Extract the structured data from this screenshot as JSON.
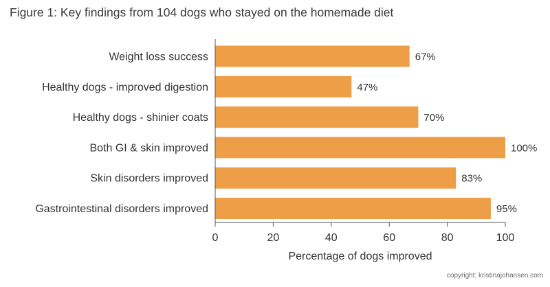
{
  "title": "Figure 1: Key findings from 104 dogs who stayed on the homemade diet",
  "copyright": "copyright: kristinajohansen.com",
  "colors": {
    "bar": "#EE9E47",
    "axis": "#555555",
    "text": "#333333"
  },
  "chart_data": {
    "type": "bar",
    "orientation": "horizontal",
    "title": "Figure 1: Key findings from 104 dogs who stayed on the homemade diet",
    "categories": [
      "Weight loss success",
      "Healthy dogs - improved digestion",
      "Healthy dogs - shinier coats",
      "Both GI & skin improved",
      "Skin disorders improved",
      "Gastrointestinal disorders improved"
    ],
    "values": [
      67,
      47,
      70,
      100,
      83,
      95
    ],
    "value_labels": [
      "67%",
      "47%",
      "70%",
      "100%",
      "83%",
      "95%"
    ],
    "xlabel": "Percentage of dogs improved",
    "ylabel": "",
    "xlim": [
      0,
      100
    ],
    "xticks": [
      0,
      20,
      40,
      60,
      80,
      100
    ],
    "xtick_labels": [
      "0",
      "20",
      "40",
      "60",
      "80",
      "100"
    ],
    "grid": false,
    "legend": "none"
  }
}
